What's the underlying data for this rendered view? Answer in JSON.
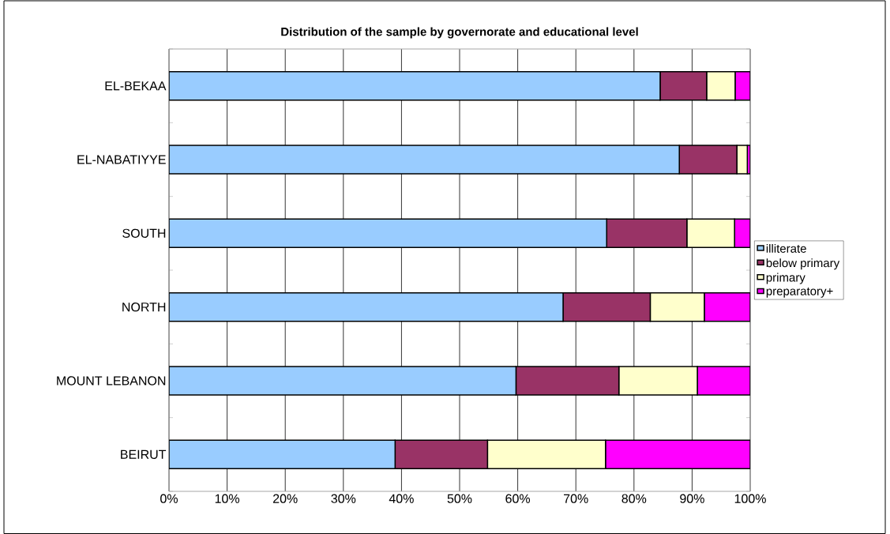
{
  "chart_data": {
    "type": "bar",
    "orientation": "horizontal",
    "stacked": true,
    "title": "Distribution of the sample by governorate and educational level",
    "categories": [
      "EL-BEKAA",
      "EL-NABATIYYE",
      "SOUTH",
      "NORTH",
      "MOUNT LEBANON",
      "BEIRUT"
    ],
    "series": [
      {
        "name": "illiterate",
        "color": "#99ccff",
        "values": [
          84.5,
          87.8,
          75.3,
          67.8,
          59.7,
          38.9
        ]
      },
      {
        "name": "below primary",
        "color": "#993366",
        "values": [
          8.0,
          9.9,
          13.8,
          15.0,
          17.7,
          15.9
        ]
      },
      {
        "name": "primary",
        "color": "#ffffcc",
        "values": [
          4.9,
          1.8,
          8.2,
          9.3,
          13.5,
          20.3
        ]
      },
      {
        "name": "preparatory+",
        "color": "#ff00ff",
        "values": [
          2.6,
          0.5,
          2.7,
          7.9,
          9.1,
          24.9
        ]
      }
    ],
    "xlim": [
      0,
      100
    ],
    "xticks": [
      {
        "value": 0,
        "label": "0%"
      },
      {
        "value": 10,
        "label": "10%"
      },
      {
        "value": 20,
        "label": "20%"
      },
      {
        "value": 30,
        "label": "30%"
      },
      {
        "value": 40,
        "label": "40%"
      },
      {
        "value": 50,
        "label": "50%"
      },
      {
        "value": 60,
        "label": "60%"
      },
      {
        "value": 70,
        "label": "70%"
      },
      {
        "value": 80,
        "label": "80%"
      },
      {
        "value": 90,
        "label": "90%"
      },
      {
        "value": 100,
        "label": "100%"
      }
    ],
    "grid": "x",
    "legend": "right"
  }
}
